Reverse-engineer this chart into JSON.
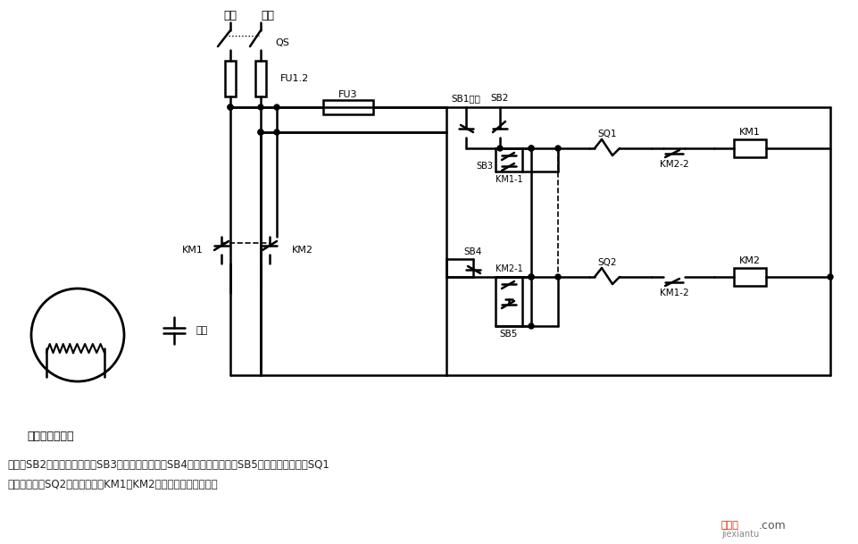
{
  "bg_color": "#ffffff",
  "note_line1": "说明：SB2为上升启动按钮，SB3为上升点动按钮，SB4为下降启动按钮，SB5为下降点动按钮；SQ1",
  "note_line2": "为最高限位，SQ2为最低限位。KM1、KM2可用中间继电器代替。",
  "label_fire": "火线",
  "label_zero": "零线",
  "label_QS": "QS",
  "label_FU12": "FU1.2",
  "label_FU3": "FU3",
  "label_SB1": "SB1停止",
  "label_SB2": "SB2",
  "label_SB3": "SB3",
  "label_SB4": "SB4",
  "label_SB5": "SB5",
  "label_SQ1": "SQ1",
  "label_SQ2": "SQ2",
  "label_KM1_coil": "KM1",
  "label_KM2_coil": "KM2",
  "label_KM1_1": "KM1-1",
  "label_KM1_2": "KM1-2",
  "label_KM2_1": "KM2-1",
  "label_KM2_2": "KM2-2",
  "label_KM1_main": "KM1",
  "label_KM2_main": "KM2",
  "label_capacitor": "电容",
  "label_motor": "单相电容电动机",
  "wm_red": "接线图",
  "wm_com": ".com",
  "wm_sub": "jiexiantu"
}
